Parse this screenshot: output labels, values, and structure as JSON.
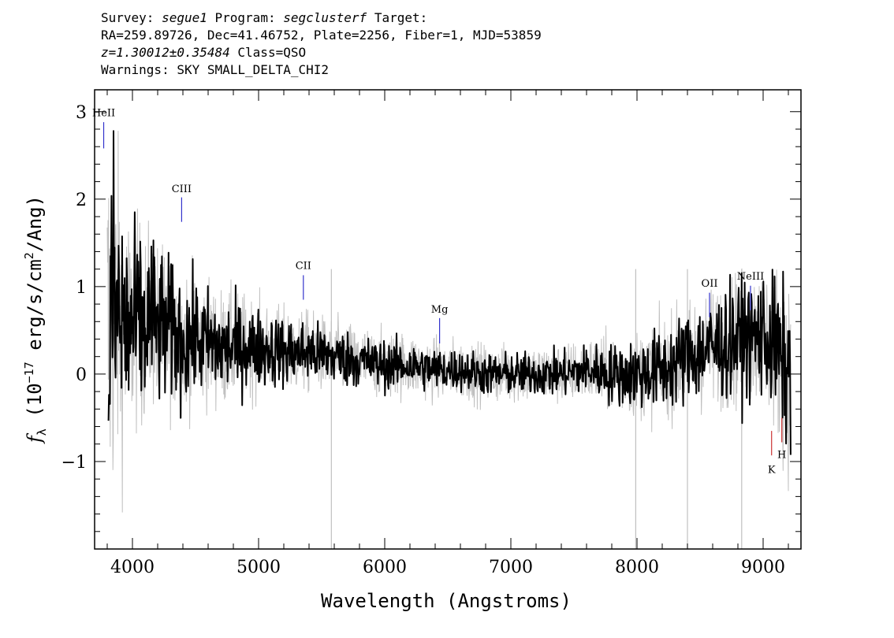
{
  "header": {
    "survey_label": "Survey:",
    "survey": "segue1",
    "program_label": "Program:",
    "program": "segclusterf",
    "target_label": "Target:",
    "line2": "RA=259.89726, Dec=41.46752, Plate=2256, Fiber=1, MJD=53859",
    "redshift": "z=1.30012±0.35484",
    "class": "Class=QSO",
    "warnings": "Warnings: SKY SMALL_DELTA_CHI2"
  },
  "colors": {
    "flux": "#000000",
    "error": "#c0c0c0",
    "emission": "#3333cc",
    "absorption": "#cc3333"
  },
  "chart_data": {
    "type": "line",
    "xlabel": "Wavelength (Angstroms)",
    "ylabel_prefix": "f",
    "ylabel_sub": "λ",
    "ylabel_text": "(10",
    "ylabel_exp": "−17",
    "ylabel_unit": "erg/s/cm",
    "ylabel_unit_exp": "2",
    "ylabel_tail": "/Ang)",
    "xlim": [
      3700,
      9300
    ],
    "ylim": [
      -2.0,
      3.25
    ],
    "xticks": [
      4000,
      5000,
      6000,
      7000,
      8000,
      9000
    ],
    "xtick_labels": [
      "4000",
      "5000",
      "6000",
      "7000",
      "8000",
      "9000"
    ],
    "yticks": [
      -1,
      0,
      1,
      2,
      3
    ],
    "ytick_labels": [
      "−1",
      "0",
      "1",
      "2",
      "3"
    ],
    "spectrum_x": [
      3800,
      3850,
      3900,
      3950,
      4000,
      4050,
      4100,
      4150,
      4200,
      4300,
      4400,
      4500,
      4600,
      4700,
      4800,
      4900,
      5000,
      5200,
      5400,
      5600,
      5800,
      6000,
      6200,
      6400,
      6600,
      6800,
      7000,
      7200,
      7400,
      7600,
      7800,
      8000,
      8200,
      8400,
      8600,
      8800,
      9000,
      9100,
      9200
    ],
    "spectrum_y": [
      0.3,
      0.8,
      0.6,
      0.5,
      0.5,
      0.6,
      0.5,
      0.7,
      0.5,
      0.5,
      0.4,
      0.4,
      0.35,
      0.3,
      0.3,
      0.3,
      0.3,
      0.25,
      0.25,
      0.2,
      0.15,
      0.1,
      0.1,
      0.05,
      0.05,
      0.0,
      0.0,
      0.0,
      0.0,
      0.05,
      0.0,
      0.0,
      0.05,
      0.2,
      0.3,
      0.4,
      0.45,
      0.3,
      0.0
    ],
    "noise_x": [
      3800,
      3900,
      4000,
      4200,
      4500,
      5000,
      5500,
      6000,
      6500,
      7000,
      7500,
      8000,
      8500,
      9000,
      9200
    ],
    "noise_amp": [
      1.2,
      0.8,
      0.55,
      0.45,
      0.32,
      0.22,
      0.17,
      0.14,
      0.12,
      0.12,
      0.13,
      0.2,
      0.28,
      0.35,
      0.45
    ],
    "error_amp": [
      2.5,
      1.6,
      1.1,
      0.9,
      0.7,
      0.5,
      0.4,
      0.35,
      0.32,
      0.3,
      0.32,
      0.45,
      0.6,
      0.75,
      1.0
    ],
    "lines": [
      {
        "label": "HeII",
        "x": 3772,
        "y0": 2.58,
        "y1": 2.88,
        "kind": "emission",
        "label_y": 2.95
      },
      {
        "label": "CIII",
        "x": 4390,
        "y0": 1.74,
        "y1": 2.02,
        "kind": "emission",
        "label_y": 2.08
      },
      {
        "label": "CII",
        "x": 5355,
        "y0": 0.85,
        "y1": 1.13,
        "kind": "emission",
        "label_y": 1.2
      },
      {
        "label": "Mg",
        "x": 6435,
        "y0": 0.35,
        "y1": 0.64,
        "kind": "emission",
        "label_y": 0.7
      },
      {
        "label": "OII",
        "x": 8575,
        "y0": 0.65,
        "y1": 0.93,
        "kind": "emission",
        "label_y": 1.0
      },
      {
        "label": "NeIII",
        "x": 8900,
        "y0": 0.73,
        "y1": 1.01,
        "kind": "emission",
        "label_y": 1.08
      },
      {
        "label": "K",
        "x": 9067,
        "y0": -0.93,
        "y1": -0.65,
        "kind": "absorption",
        "label_y": -1.13
      },
      {
        "label": "H",
        "x": 9148,
        "y0": -0.78,
        "y1": -0.5,
        "kind": "absorption",
        "label_y": -0.96
      }
    ]
  }
}
